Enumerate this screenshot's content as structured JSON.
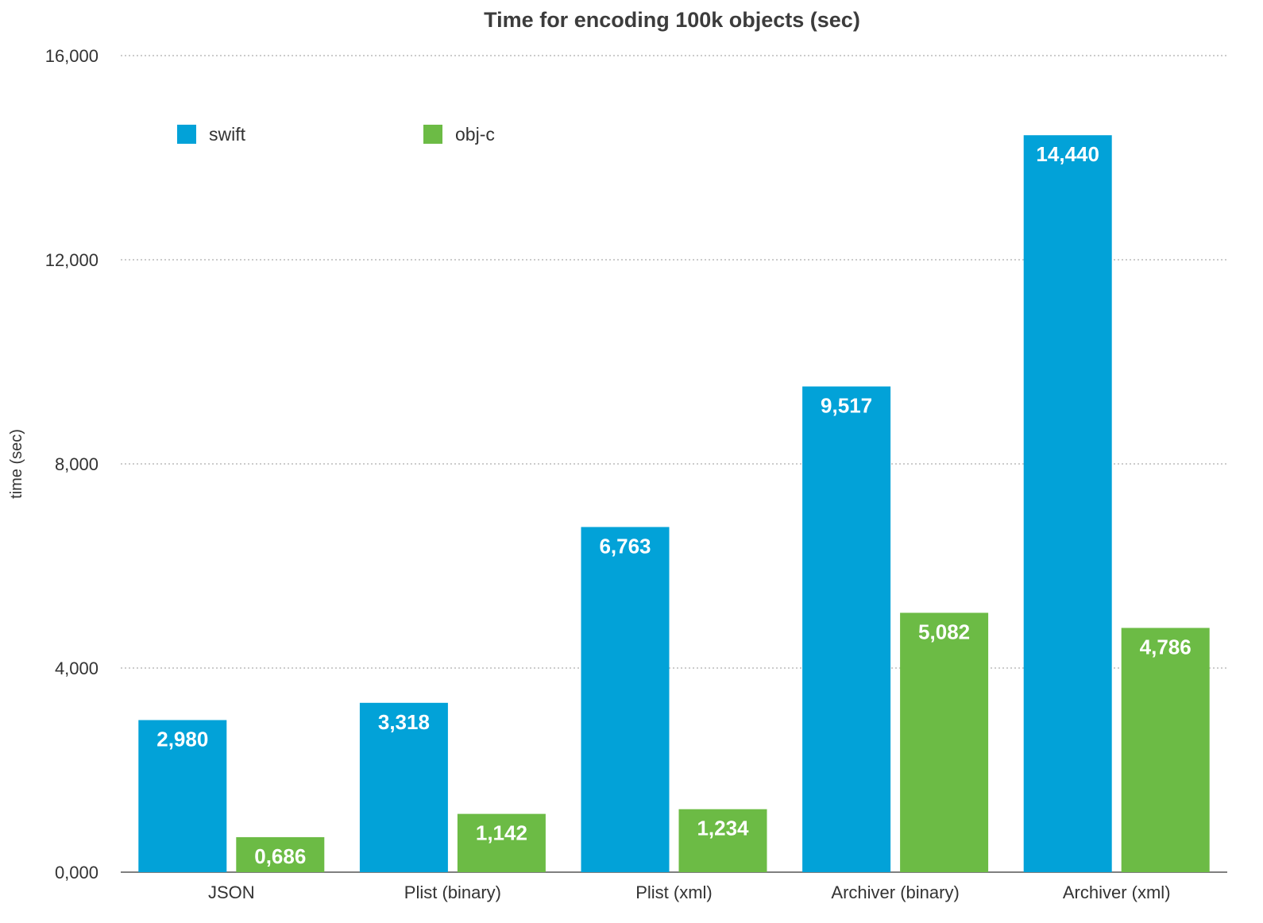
{
  "chart_data": {
    "type": "bar",
    "title": "Time for encoding 100k objects (sec)",
    "ylabel": "time (sec)",
    "xlabel": "",
    "categories": [
      "JSON",
      "Plist (binary)",
      "Plist (xml)",
      "Archiver (binary)",
      "Archiver (xml)"
    ],
    "series": [
      {
        "name": "swift",
        "color": "#02a2d8",
        "values": [
          2.98,
          3.318,
          6.763,
          9.517,
          14.44
        ],
        "labels": [
          "2,980",
          "3,318",
          "6,763",
          "9,517",
          "14,440"
        ]
      },
      {
        "name": "obj-c",
        "color": "#6cbb45",
        "values": [
          0.686,
          1.142,
          1.234,
          5.082,
          4.786
        ],
        "labels": [
          "0,686",
          "1,142",
          "1,234",
          "5,082",
          "4,786"
        ]
      }
    ],
    "ylim": [
      0,
      16
    ],
    "yticks": [
      0,
      4,
      8,
      12,
      16
    ],
    "ytick_labels": [
      "0,000",
      "4,000",
      "8,000",
      "12,000",
      "16,000"
    ],
    "grid": true,
    "legend_position": "top-left"
  }
}
